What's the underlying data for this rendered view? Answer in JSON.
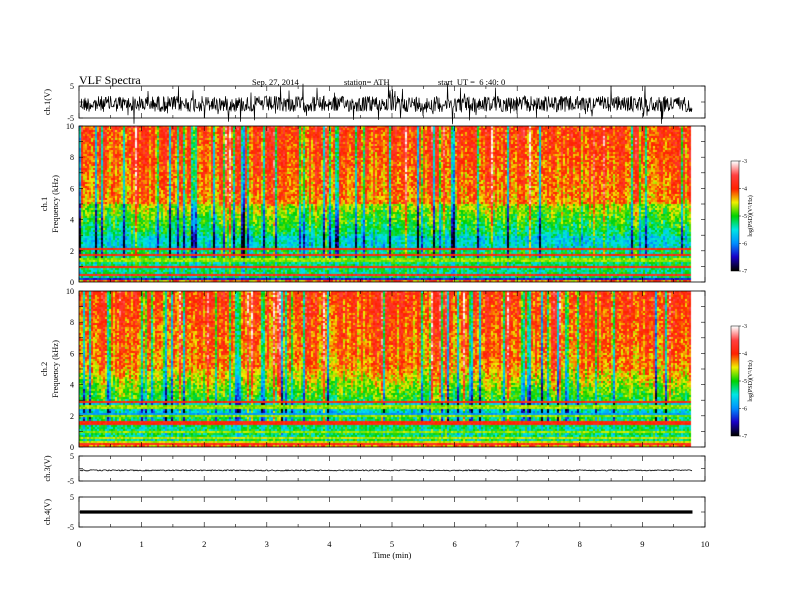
{
  "header": {
    "title": "VLF Spectra",
    "date": "Sep. 27, 2014",
    "station": "station= ATH",
    "start": "start  UT =  6 :40: 0"
  },
  "chart_data": [
    {
      "type": "line",
      "ylabel": "ch.1(V)",
      "ylim": [
        -5,
        5
      ],
      "yticks": [
        "5",
        "-5"
      ],
      "signal": "broadband noise, amplitude about ±2.5 V"
    },
    {
      "type": "heatmap",
      "ylabel_top": "ch.1",
      "ylabel": "Frequency  (kHz)",
      "ylim": [
        0,
        10
      ],
      "yticks": [
        "0",
        "2",
        "4",
        "6",
        "8",
        "10"
      ],
      "colorbar": {
        "label": "log(PSD)(V²/Hz)",
        "range": [
          -7,
          -3
        ],
        "ticks": [
          "-3",
          "-4",
          "-5",
          "-6",
          "-7"
        ]
      },
      "colors": {
        "-7": "#000000",
        "-6.5": "#1a00c8",
        "-6": "#0090ff",
        "-5.5": "#00e6e6",
        "-5": "#00d200",
        "-4.5": "#f0f000",
        "-4": "#ff2000",
        "-3.5": "#ff4040",
        "-3": "#ffffff"
      },
      "bands_khz": [
        {
          "lo": 0,
          "hi": 1.0,
          "level": "mixed red/green/blue lines"
        },
        {
          "lo": 1.0,
          "hi": 2.0,
          "level": -5.3
        },
        {
          "lo": 2.0,
          "hi": 5.0,
          "level": -5.5
        },
        {
          "lo": 5.0,
          "hi": 10.0,
          "level": -4.0
        }
      ]
    },
    {
      "type": "heatmap",
      "ylabel_top": "ch.2",
      "ylabel": "Frequency  (kHz)",
      "ylim": [
        0,
        10
      ],
      "yticks": [
        "0",
        "2",
        "4",
        "6",
        "8",
        "10"
      ],
      "colorbar": {
        "label": "log(PSD)(V²/Hz)",
        "range": [
          -7,
          -3
        ],
        "ticks": [
          "-3",
          "-4",
          "-5",
          "-6",
          "-7"
        ]
      },
      "bands_khz": [
        {
          "lo": 0,
          "hi": 1.5,
          "level": "mixed red/green lines"
        },
        {
          "lo": 1.5,
          "hi": 3.0,
          "level": -5.3
        },
        {
          "lo": 3.0,
          "hi": 5.0,
          "level": -5.0
        },
        {
          "lo": 5.0,
          "hi": 10.0,
          "level": -4.0
        }
      ]
    },
    {
      "type": "line",
      "ylabel": "ch.3(V)",
      "ylim": [
        -5,
        5
      ],
      "yticks": [
        "5",
        "-5"
      ],
      "signal": "near-flat trace slightly above 0 V"
    },
    {
      "type": "line",
      "ylabel": "ch.4(V)",
      "ylim": [
        -5,
        5
      ],
      "yticks": [
        "5",
        "-5"
      ],
      "signal": "flat thick trace near 0 V"
    }
  ],
  "xaxis": {
    "label": "Time  (min)",
    "ticks": [
      "0",
      "1",
      "2",
      "3",
      "4",
      "5",
      "6",
      "7",
      "8",
      "9",
      "10"
    ],
    "xlim": [
      0,
      10
    ],
    "data_end": 9.8
  }
}
